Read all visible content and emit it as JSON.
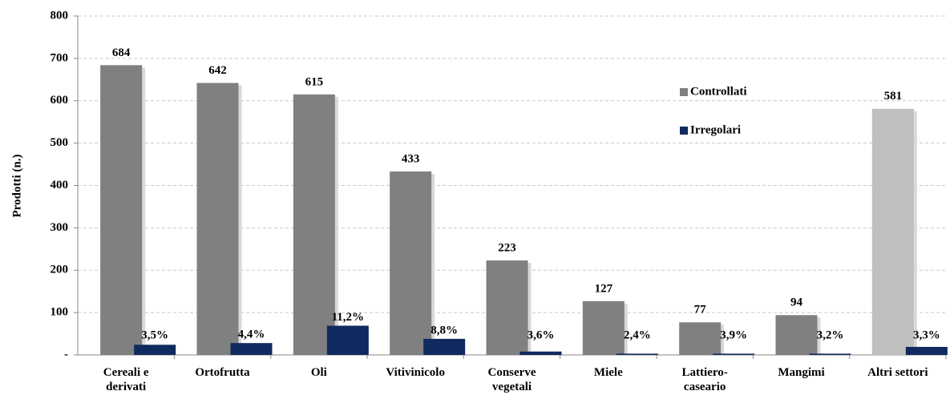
{
  "chart_data": {
    "type": "bar",
    "y_label": "Prodotti (n.)",
    "categories": [
      "Cereali e\nderivati",
      "Ortofrutta",
      "Oli",
      "Vitivinicolo",
      "Conserve\nvegetali",
      "Miele",
      "Lattiero-\ncaseario",
      "Mangimi",
      "Altri settori"
    ],
    "series": [
      {
        "name": "Controllati",
        "color": "#808080",
        "colors": [
          "#808080",
          "#808080",
          "#808080",
          "#808080",
          "#808080",
          "#808080",
          "#808080",
          "#808080",
          "#bfbfbf"
        ],
        "values": [
          684,
          642,
          615,
          433,
          223,
          127,
          77,
          94,
          581
        ]
      },
      {
        "name": "Irregolari",
        "color": "#0f2a5e",
        "values": [
          24,
          28,
          69,
          38,
          8,
          3,
          3,
          3,
          19
        ],
        "annotations": [
          "3,5%",
          "4,4%",
          "11,2%",
          "8,8%",
          "3,6%",
          "2,4%",
          "3,9%",
          "3,2%",
          "3,3%"
        ]
      }
    ],
    "ylim": [
      0,
      800
    ],
    "yticks": [
      {
        "value": 0,
        "label": "-"
      },
      100,
      200,
      300,
      400,
      500,
      600,
      700,
      800
    ],
    "grid": true,
    "legend": "upper right"
  }
}
